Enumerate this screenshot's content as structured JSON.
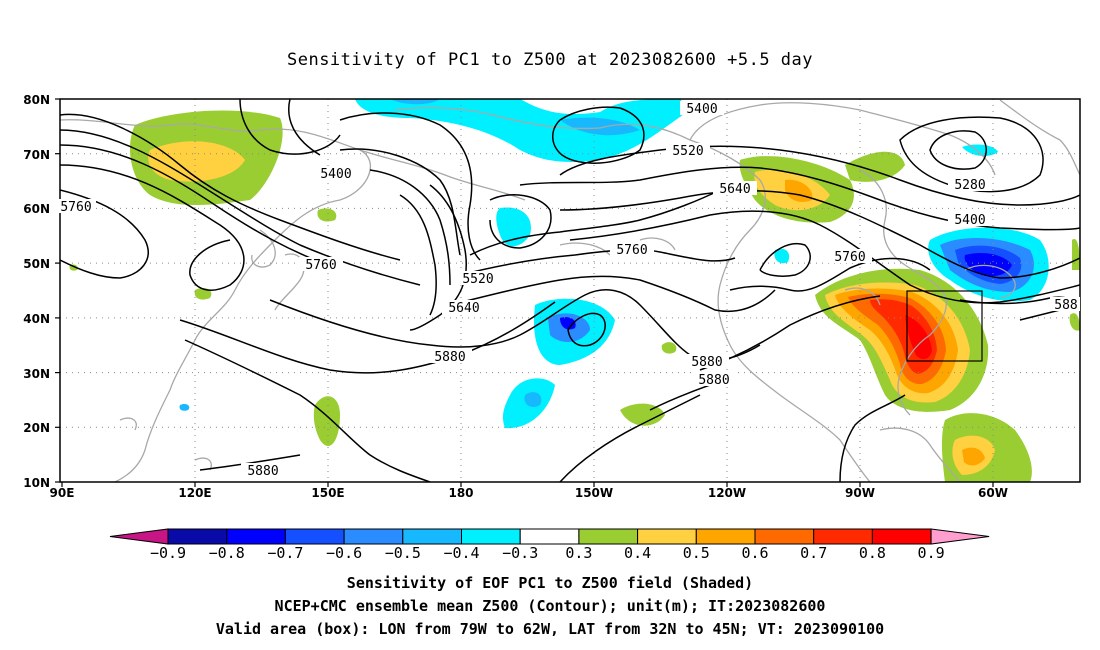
{
  "title": "Sensitivity of PC1 to Z500 at 2023082600 +5.5 day",
  "lat_labels": [
    "80N",
    "70N",
    "60N",
    "50N",
    "40N",
    "30N",
    "20N",
    "10N"
  ],
  "lon_labels": [
    "90E",
    "120E",
    "150E",
    "180",
    "150W",
    "120W",
    "90W",
    "60W"
  ],
  "contour_labels": [
    {
      "text": "5400",
      "id": "c5400a"
    },
    {
      "text": "5520",
      "id": "c5520a"
    },
    {
      "text": "5640",
      "id": "c5640a"
    },
    {
      "text": "5280",
      "id": "c5280"
    },
    {
      "text": "5400",
      "id": "c5400b"
    },
    {
      "text": "5400",
      "id": "c5400c"
    },
    {
      "text": "5760",
      "id": "c5760a"
    },
    {
      "text": "5760",
      "id": "c5760b"
    },
    {
      "text": "5760",
      "id": "c5760c"
    },
    {
      "text": "5760",
      "id": "c5760d"
    },
    {
      "text": "5520",
      "id": "c5520b"
    },
    {
      "text": "5640",
      "id": "c5640b"
    },
    {
      "text": "5880",
      "id": "c5880a"
    },
    {
      "text": "5880",
      "id": "c5880b"
    },
    {
      "text": "5880",
      "id": "c5880c"
    },
    {
      "text": "5880",
      "id": "c5880d"
    },
    {
      "text": "588",
      "id": "c588e"
    }
  ],
  "colorbar": {
    "labels": [
      "−0.9",
      "−0.8",
      "−0.7",
      "−0.6",
      "−0.5",
      "−0.4",
      "−0.3",
      "0.3",
      "0.4",
      "0.5",
      "0.6",
      "0.7",
      "0.8",
      "0.9"
    ],
    "colors": [
      "#0a0aa8",
      "#0000ff",
      "#1450ff",
      "#2a8cff",
      "#18b8ff",
      "#00f0ff",
      "#ffffff",
      "#9acd32",
      "#ffd040",
      "#ffa500",
      "#ff6a00",
      "#ff2a00",
      "#ff0000"
    ],
    "low_end_color": "#c71585",
    "high_end_color": "#ff9ecf"
  },
  "captions": [
    "Sensitivity of EOF PC1 to Z500 field (Shaded)",
    "NCEP+CMC ensemble mean Z500 (Contour); unit(m); IT:2023082600",
    "Valid area (box): LON from 79W to 62W, LAT from 32N to 45N; VT: 2023090100"
  ]
}
